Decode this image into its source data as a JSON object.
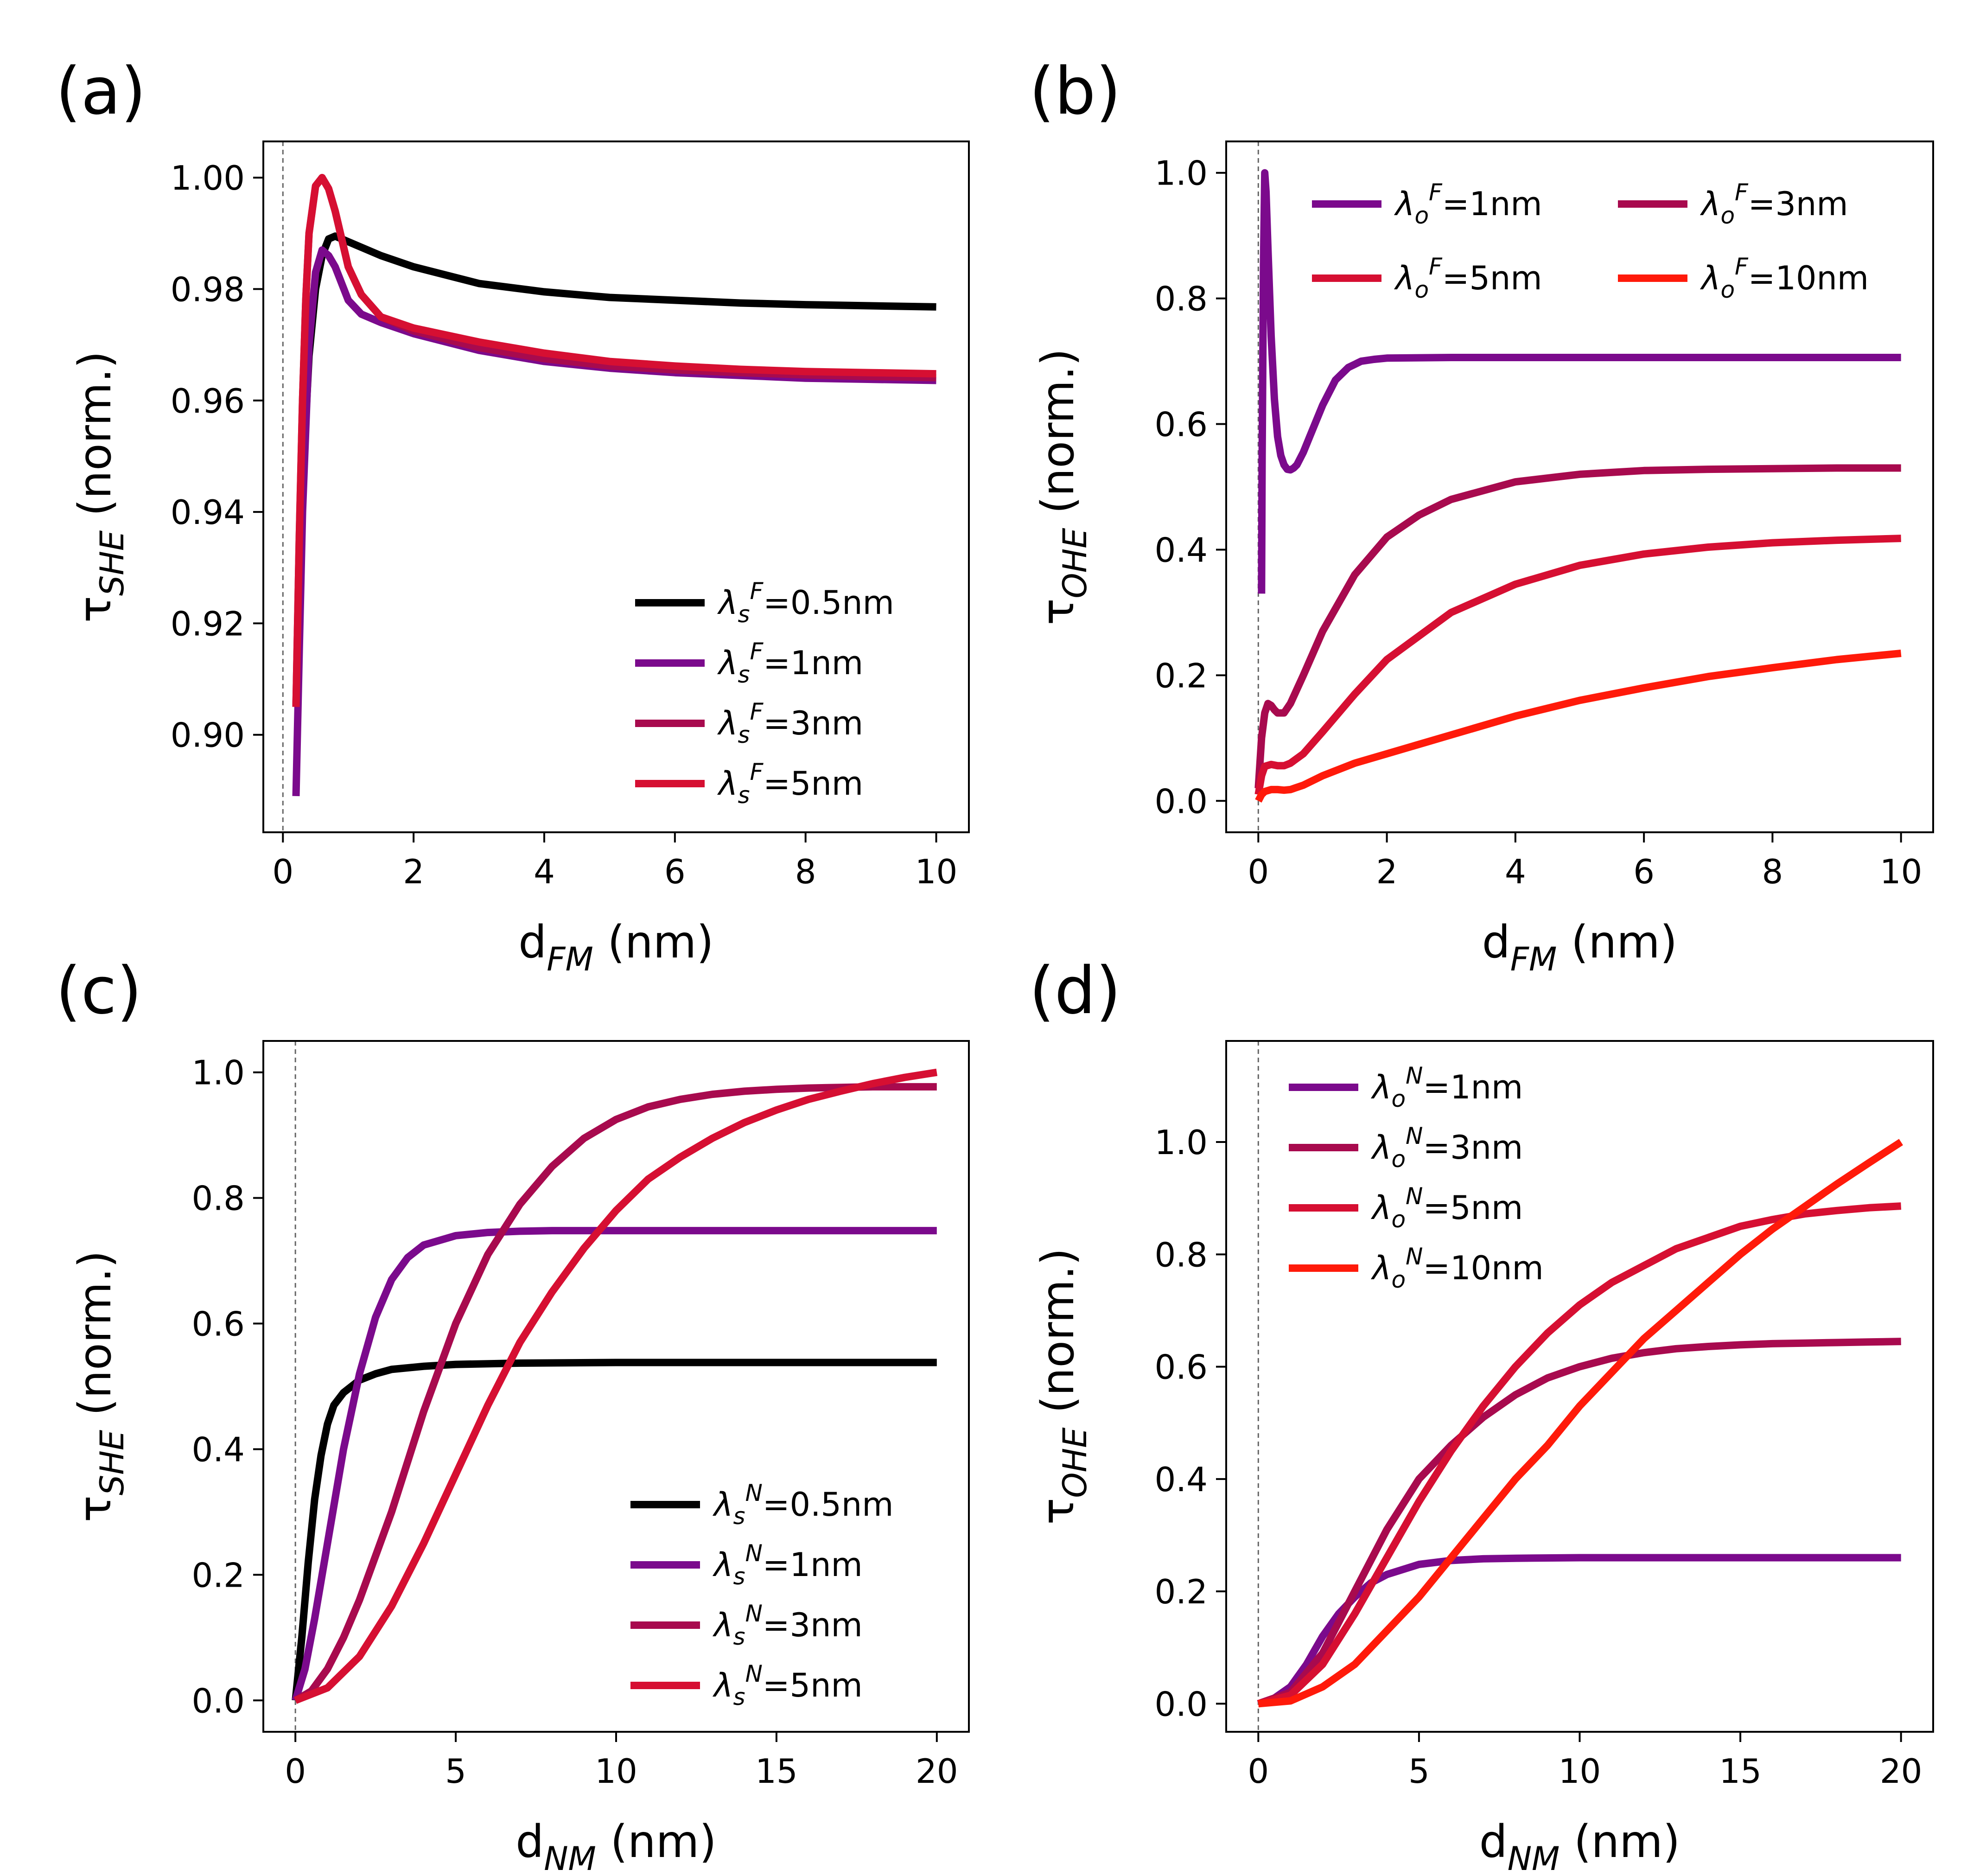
{
  "figure": {
    "panels": [
      "(a)",
      "(b)",
      "(c)",
      "(d)"
    ]
  },
  "chart_data": [
    {
      "panel": "(a)",
      "type": "line",
      "xlabel": {
        "base": "d",
        "sub": "FM",
        "tail": " (nm)"
      },
      "ylabel": {
        "base": "τ",
        "sub": "SHE",
        "tail": " (norm.)"
      },
      "xlim": [
        -0.3,
        10.5
      ],
      "ylim": [
        0.8825,
        1.0065
      ],
      "xticks": [
        0,
        2,
        4,
        6,
        8,
        10
      ],
      "xtick_labels": [
        "0",
        "2",
        "4",
        "6",
        "8",
        "10"
      ],
      "yticks": [
        0.9,
        0.92,
        0.94,
        0.96,
        0.98,
        1.0
      ],
      "ytick_labels": [
        "0.90",
        "0.92",
        "0.94",
        "0.96",
        "0.98",
        "1.00"
      ],
      "vline_x": 0,
      "legend": "lower-right",
      "series": [
        {
          "name": "λs F=0.5nm",
          "label": {
            "lam": "λ",
            "sub": "s",
            "sup": "F",
            "val": "=0.5nm"
          },
          "color": "#000000",
          "x": [
            0.2,
            0.25,
            0.3,
            0.4,
            0.5,
            0.6,
            0.7,
            0.8,
            0.9,
            1.0,
            1.2,
            1.5,
            2,
            3,
            4,
            5,
            6,
            7,
            8,
            9,
            10
          ],
          "y": [
            0.905,
            0.925,
            0.945,
            0.968,
            0.98,
            0.986,
            0.989,
            0.9895,
            0.989,
            0.9885,
            0.9875,
            0.986,
            0.984,
            0.981,
            0.9795,
            0.9785,
            0.978,
            0.9775,
            0.9772,
            0.977,
            0.9768
          ]
        },
        {
          "name": "λs F=1nm",
          "label": {
            "lam": "λ",
            "sub": "s",
            "sup": "F",
            "val": "=1nm"
          },
          "color": "#7B0A8C",
          "x": [
            0.2,
            0.25,
            0.3,
            0.4,
            0.5,
            0.6,
            0.7,
            0.8,
            0.9,
            1.0,
            1.2,
            1.5,
            2,
            3,
            4,
            5,
            6,
            7,
            8,
            9,
            10
          ],
          "y": [
            0.889,
            0.915,
            0.94,
            0.97,
            0.983,
            0.987,
            0.986,
            0.984,
            0.981,
            0.978,
            0.9755,
            0.974,
            0.972,
            0.969,
            0.967,
            0.9658,
            0.965,
            0.9645,
            0.964,
            0.9638,
            0.9636
          ]
        },
        {
          "name": "λs F=3nm",
          "label": {
            "lam": "λ",
            "sub": "s",
            "sup": "F",
            "val": "=3nm"
          },
          "color": "#A80A4E",
          "x": [
            0.2,
            0.25,
            0.3,
            0.35,
            0.4,
            0.5,
            0.6,
            0.7,
            0.8,
            0.9,
            1.0,
            1.2,
            1.5,
            2,
            3,
            4,
            5,
            6,
            7,
            8,
            9,
            10
          ],
          "y": [
            0.905,
            0.935,
            0.96,
            0.978,
            0.99,
            0.9985,
            1.0,
            0.998,
            0.994,
            0.989,
            0.984,
            0.979,
            0.975,
            0.9725,
            0.9695,
            0.9675,
            0.9662,
            0.9655,
            0.965,
            0.9646,
            0.9643,
            0.9641
          ]
        },
        {
          "name": "λs F=5nm",
          "label": {
            "lam": "λ",
            "sub": "s",
            "sup": "F",
            "val": "=5nm"
          },
          "color": "#D60F32",
          "x": [
            0.2,
            0.25,
            0.3,
            0.35,
            0.4,
            0.5,
            0.6,
            0.7,
            0.8,
            0.9,
            1.0,
            1.2,
            1.5,
            2,
            3,
            4,
            5,
            6,
            7,
            8,
            9,
            10
          ],
          "y": [
            0.905,
            0.935,
            0.96,
            0.978,
            0.99,
            0.9985,
            1.0,
            0.998,
            0.994,
            0.989,
            0.984,
            0.979,
            0.975,
            0.973,
            0.9705,
            0.9685,
            0.967,
            0.9662,
            0.9656,
            0.9652,
            0.965,
            0.9648
          ]
        }
      ]
    },
    {
      "panel": "(b)",
      "type": "line",
      "xlabel": {
        "base": "d",
        "sub": "FM",
        "tail": " (nm)"
      },
      "ylabel": {
        "base": "τ",
        "sub": "OHE",
        "tail": " (norm.)"
      },
      "xlim": [
        -0.5,
        10.5
      ],
      "ylim": [
        -0.05,
        1.05
      ],
      "xticks": [
        0,
        2,
        4,
        6,
        8,
        10
      ],
      "xtick_labels": [
        "0",
        "2",
        "4",
        "6",
        "8",
        "10"
      ],
      "yticks": [
        0.0,
        0.2,
        0.4,
        0.6,
        0.8,
        1.0
      ],
      "ytick_labels": [
        "0.0",
        "0.2",
        "0.4",
        "0.6",
        "0.8",
        "1.0"
      ],
      "vline_x": 0,
      "legend": "top",
      "series": [
        {
          "name": "λo F=1nm",
          "label": {
            "lam": "λ",
            "sub": "o",
            "sup": "F",
            "val": "=1nm"
          },
          "color": "#7B0A8C",
          "x": [
            0.05,
            0.06,
            0.08,
            0.1,
            0.12,
            0.15,
            0.2,
            0.25,
            0.3,
            0.35,
            0.4,
            0.45,
            0.5,
            0.55,
            0.6,
            0.7,
            0.8,
            1.0,
            1.2,
            1.4,
            1.6,
            1.8,
            2.0,
            3,
            4,
            6,
            8,
            10
          ],
          "y": [
            0.33,
            0.55,
            0.85,
            1.0,
            0.97,
            0.88,
            0.74,
            0.64,
            0.58,
            0.55,
            0.535,
            0.528,
            0.527,
            0.53,
            0.535,
            0.555,
            0.58,
            0.63,
            0.67,
            0.69,
            0.7,
            0.703,
            0.705,
            0.706,
            0.706,
            0.706,
            0.706,
            0.706
          ]
        },
        {
          "name": "λo F=3nm",
          "label": {
            "lam": "λ",
            "sub": "o",
            "sup": "F",
            "val": "=3nm"
          },
          "color": "#A80A4E",
          "x": [
            0.0,
            0.05,
            0.1,
            0.15,
            0.2,
            0.25,
            0.3,
            0.4,
            0.5,
            0.7,
            1.0,
            1.5,
            2,
            2.5,
            3,
            4,
            5,
            6,
            7,
            8,
            9,
            10
          ],
          "y": [
            0.02,
            0.1,
            0.14,
            0.155,
            0.152,
            0.145,
            0.14,
            0.14,
            0.155,
            0.2,
            0.27,
            0.36,
            0.42,
            0.455,
            0.48,
            0.508,
            0.52,
            0.526,
            0.528,
            0.529,
            0.53,
            0.53
          ]
        },
        {
          "name": "λo F=5nm",
          "label": {
            "lam": "λ",
            "sub": "o",
            "sup": "F",
            "val": "=5nm"
          },
          "color": "#D60F32",
          "x": [
            0.0,
            0.05,
            0.1,
            0.2,
            0.3,
            0.4,
            0.5,
            0.7,
            1.0,
            1.5,
            2,
            3,
            4,
            5,
            6,
            7,
            8,
            9,
            10
          ],
          "y": [
            0.01,
            0.04,
            0.055,
            0.058,
            0.056,
            0.056,
            0.06,
            0.075,
            0.11,
            0.17,
            0.225,
            0.3,
            0.345,
            0.375,
            0.393,
            0.404,
            0.411,
            0.415,
            0.418
          ]
        },
        {
          "name": "λo F=10nm",
          "label": {
            "lam": "λ",
            "sub": "o",
            "sup": "F",
            "val": "=10nm"
          },
          "color": "#FF1A0A",
          "x": [
            0.0,
            0.05,
            0.1,
            0.2,
            0.3,
            0.4,
            0.5,
            0.7,
            1.0,
            1.5,
            2,
            3,
            4,
            5,
            6,
            7,
            8,
            9,
            10
          ],
          "y": [
            0.0,
            0.01,
            0.015,
            0.018,
            0.018,
            0.017,
            0.018,
            0.025,
            0.04,
            0.06,
            0.075,
            0.105,
            0.135,
            0.16,
            0.18,
            0.198,
            0.212,
            0.225,
            0.235
          ]
        }
      ]
    },
    {
      "panel": "(c)",
      "type": "line",
      "xlabel": {
        "base": "d",
        "sub": "NM",
        "tail": " (nm)"
      },
      "ylabel": {
        "base": "τ",
        "sub": "SHE",
        "tail": " (norm.)"
      },
      "xlim": [
        -1.0,
        21.0
      ],
      "ylim": [
        -0.05,
        1.05
      ],
      "xticks": [
        0,
        5,
        10,
        15,
        20
      ],
      "xtick_labels": [
        "0",
        "5",
        "10",
        "15",
        "20"
      ],
      "yticks": [
        0.0,
        0.2,
        0.4,
        0.6,
        0.8,
        1.0
      ],
      "ytick_labels": [
        "0.0",
        "0.2",
        "0.4",
        "0.6",
        "0.8",
        "1.0"
      ],
      "vline_x": 0,
      "legend": "lower-right",
      "series": [
        {
          "name": "λs N=0.5nm",
          "label": {
            "lam": "λ",
            "sub": "s",
            "sup": "N",
            "val": "=0.5nm"
          },
          "color": "#000000",
          "x": [
            0,
            0.2,
            0.4,
            0.6,
            0.8,
            1.0,
            1.2,
            1.5,
            2,
            2.5,
            3,
            4,
            5,
            7,
            10,
            15,
            20
          ],
          "y": [
            0,
            0.1,
            0.22,
            0.32,
            0.39,
            0.44,
            0.47,
            0.49,
            0.51,
            0.52,
            0.527,
            0.532,
            0.535,
            0.537,
            0.538,
            0.538,
            0.538
          ]
        },
        {
          "name": "λs N=1nm",
          "label": {
            "lam": "λ",
            "sub": "s",
            "sup": "N",
            "val": "=1nm"
          },
          "color": "#7B0A8C",
          "x": [
            0,
            0.3,
            0.6,
            1.0,
            1.5,
            2,
            2.5,
            3,
            3.5,
            4,
            5,
            6,
            7,
            8,
            10,
            12,
            15,
            20
          ],
          "y": [
            0,
            0.05,
            0.13,
            0.25,
            0.4,
            0.52,
            0.61,
            0.67,
            0.705,
            0.725,
            0.74,
            0.745,
            0.747,
            0.748,
            0.748,
            0.748,
            0.748,
            0.748
          ]
        },
        {
          "name": "λs N=3nm",
          "label": {
            "lam": "λ",
            "sub": "s",
            "sup": "N",
            "val": "=3nm"
          },
          "color": "#A80A4E",
          "x": [
            0,
            0.5,
            1,
            1.5,
            2,
            3,
            4,
            5,
            6,
            7,
            8,
            9,
            10,
            11,
            12,
            13,
            14,
            15,
            16,
            17,
            18,
            19,
            20
          ],
          "y": [
            0,
            0.015,
            0.05,
            0.1,
            0.16,
            0.3,
            0.46,
            0.6,
            0.71,
            0.79,
            0.85,
            0.895,
            0.925,
            0.945,
            0.957,
            0.965,
            0.97,
            0.973,
            0.975,
            0.976,
            0.977,
            0.977,
            0.977
          ]
        },
        {
          "name": "λs N=5nm",
          "label": {
            "lam": "λ",
            "sub": "s",
            "sup": "N",
            "val": "=5nm"
          },
          "color": "#D60F32",
          "x": [
            0,
            1,
            2,
            3,
            4,
            5,
            6,
            7,
            8,
            9,
            10,
            11,
            12,
            13,
            14,
            15,
            16,
            17,
            18,
            19,
            20
          ],
          "y": [
            0,
            0.02,
            0.07,
            0.15,
            0.25,
            0.36,
            0.47,
            0.57,
            0.65,
            0.72,
            0.78,
            0.83,
            0.865,
            0.895,
            0.92,
            0.94,
            0.957,
            0.97,
            0.982,
            0.992,
            1.0
          ]
        }
      ]
    },
    {
      "panel": "(d)",
      "type": "line",
      "xlabel": {
        "base": "d",
        "sub": "NM",
        "tail": " (nm)"
      },
      "ylabel": {
        "base": "τ",
        "sub": "OHE",
        "tail": " (norm.)"
      },
      "xlim": [
        -1.0,
        21.0
      ],
      "ylim": [
        -0.05,
        1.18
      ],
      "xticks": [
        0,
        5,
        10,
        15,
        20
      ],
      "xtick_labels": [
        "0",
        "5",
        "10",
        "15",
        "20"
      ],
      "yticks": [
        0.0,
        0.2,
        0.4,
        0.6,
        0.8,
        1.0
      ],
      "ytick_labels": [
        "0.0",
        "0.2",
        "0.4",
        "0.6",
        "0.8",
        "1.0"
      ],
      "vline_x": 0,
      "legend": "top-left",
      "series": [
        {
          "name": "λo N=1nm",
          "label": {
            "lam": "λ",
            "sub": "o",
            "sup": "N",
            "val": "=1nm"
          },
          "color": "#7B0A8C",
          "x": [
            0,
            0.5,
            1,
            1.5,
            2,
            2.5,
            3,
            3.5,
            4,
            5,
            6,
            7,
            8,
            10,
            12,
            15,
            20
          ],
          "y": [
            0,
            0.01,
            0.03,
            0.07,
            0.12,
            0.16,
            0.19,
            0.215,
            0.23,
            0.248,
            0.255,
            0.258,
            0.259,
            0.26,
            0.26,
            0.26,
            0.26
          ]
        },
        {
          "name": "λo N=3nm",
          "label": {
            "lam": "λ",
            "sub": "o",
            "sup": "N",
            "val": "=3nm"
          },
          "color": "#A80A4E",
          "x": [
            0,
            1,
            2,
            3,
            4,
            5,
            6,
            7,
            8,
            9,
            10,
            11,
            12,
            13,
            14,
            15,
            16,
            17,
            18,
            19,
            20
          ],
          "y": [
            0,
            0.02,
            0.09,
            0.2,
            0.31,
            0.4,
            0.46,
            0.51,
            0.55,
            0.58,
            0.6,
            0.615,
            0.625,
            0.632,
            0.636,
            0.639,
            0.641,
            0.642,
            0.643,
            0.644,
            0.645
          ]
        },
        {
          "name": "λo N=5nm",
          "label": {
            "lam": "λ",
            "sub": "o",
            "sup": "N",
            "val": "=5nm"
          },
          "color": "#D60F32",
          "x": [
            0,
            1,
            2,
            3,
            4,
            5,
            6,
            7,
            8,
            9,
            10,
            11,
            12,
            13,
            14,
            15,
            16,
            17,
            18,
            19,
            20
          ],
          "y": [
            0,
            0.015,
            0.07,
            0.16,
            0.26,
            0.36,
            0.45,
            0.53,
            0.6,
            0.66,
            0.71,
            0.75,
            0.78,
            0.81,
            0.83,
            0.85,
            0.862,
            0.872,
            0.878,
            0.883,
            0.886
          ]
        },
        {
          "name": "λo N=10nm",
          "label": {
            "lam": "λ",
            "sub": "o",
            "sup": "N",
            "val": "=10nm"
          },
          "color": "#FF1A0A",
          "x": [
            0,
            1,
            2,
            3,
            4,
            5,
            6,
            7,
            8,
            9,
            10,
            11,
            12,
            13,
            14,
            15,
            16,
            17,
            18,
            19,
            20
          ],
          "y": [
            0,
            0.005,
            0.03,
            0.07,
            0.13,
            0.19,
            0.26,
            0.33,
            0.4,
            0.46,
            0.53,
            0.59,
            0.65,
            0.7,
            0.75,
            0.8,
            0.845,
            0.885,
            0.925,
            0.963,
            1.0
          ]
        }
      ]
    }
  ]
}
